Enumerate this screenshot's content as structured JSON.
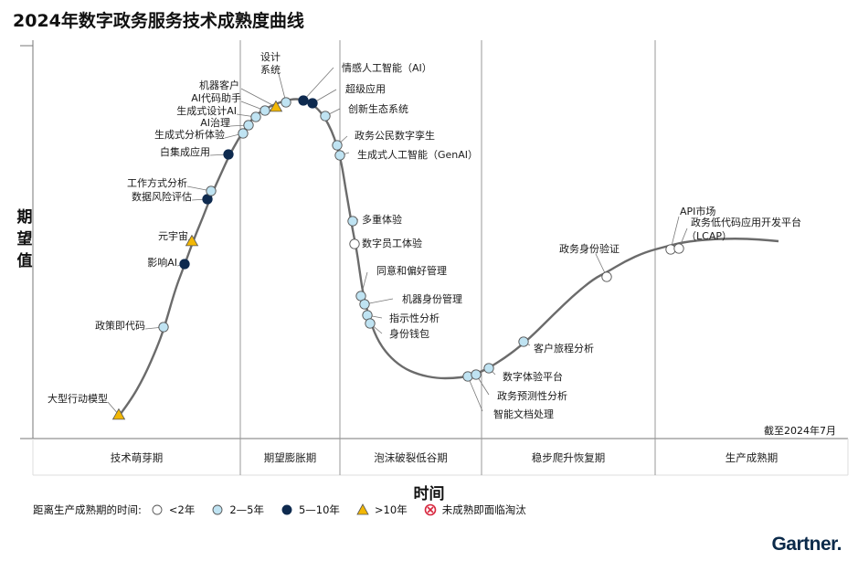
{
  "header": {
    "title": "2024年数字政务服务技术成熟度曲线"
  },
  "axes": {
    "ylabel": "期望值",
    "xlabel": "时间"
  },
  "as_of": "截至2024年7月",
  "brand": "Gartner.",
  "legend": {
    "prefix": "距离生产成熟期的时间:",
    "items": [
      {
        "key": "lt2",
        "label": "<2年",
        "color": "#ffffff"
      },
      {
        "key": "2to5",
        "label": "2—5年",
        "color": "#bfe3f2"
      },
      {
        "key": "5to10",
        "label": "5—10年",
        "color": "#0e2a4f"
      },
      {
        "key": "gt10",
        "label": ">10年",
        "color": "#f2b705"
      },
      {
        "key": "obsolete",
        "label": "未成熟即面临淘汰",
        "color": "#d7263d"
      }
    ]
  },
  "chart_data": {
    "type": "hype-cycle",
    "phases": [
      "技术萌芽期",
      "期望膨胀期",
      "泡沫破裂低谷期",
      "稳步爬升恢复期",
      "生产成熟期"
    ],
    "points": [
      {
        "label": "大型行动模型",
        "category": "gt10",
        "phase": 0
      },
      {
        "label": "政策即代码",
        "category": "2to5",
        "phase": 0
      },
      {
        "label": "影响AI",
        "category": "5to10",
        "phase": 0
      },
      {
        "label": "元宇宙",
        "category": "gt10",
        "phase": 0
      },
      {
        "label": "数据风险评估",
        "category": "5to10",
        "phase": 0
      },
      {
        "label": "工作方式分析",
        "category": "2to5",
        "phase": 0
      },
      {
        "label": "白集成应用",
        "category": "5to10",
        "phase": 0
      },
      {
        "label": "生成式分析体验",
        "category": "2to5",
        "phase": 1
      },
      {
        "label": "AI治理",
        "category": "2to5",
        "phase": 1
      },
      {
        "label": "生成式设计AI",
        "category": "2to5",
        "phase": 1
      },
      {
        "label": "AI代码助手",
        "category": "2to5",
        "phase": 1
      },
      {
        "label": "机器客户",
        "category": "gt10",
        "phase": 1
      },
      {
        "label": "设计系统",
        "category": "2to5",
        "phase": 1
      },
      {
        "label": "情感人工智能（AI）",
        "category": "5to10",
        "phase": 1
      },
      {
        "label": "超级应用",
        "category": "5to10",
        "phase": 1
      },
      {
        "label": "创新生态系统",
        "category": "2to5",
        "phase": 2
      },
      {
        "label": "政务公民数字孪生",
        "category": "2to5",
        "phase": 2
      },
      {
        "label": "生成式人工智能（GenAI）",
        "category": "2to5",
        "phase": 2
      },
      {
        "label": "多重体验",
        "category": "2to5",
        "phase": 2
      },
      {
        "label": "数字员工体验",
        "category": "lt2",
        "phase": 2
      },
      {
        "label": "同意和偏好管理",
        "category": "2to5",
        "phase": 2
      },
      {
        "label": "机器身份管理",
        "category": "2to5",
        "phase": 2
      },
      {
        "label": "指示性分析",
        "category": "2to5",
        "phase": 2
      },
      {
        "label": "身份钱包",
        "category": "2to5",
        "phase": 2
      },
      {
        "label": "智能文档处理",
        "category": "2to5",
        "phase": 2
      },
      {
        "label": "政务预测性分析",
        "category": "2to5",
        "phase": 2
      },
      {
        "label": "数字体验平台",
        "category": "2to5",
        "phase": 3
      },
      {
        "label": "客户旅程分析",
        "category": "2to5",
        "phase": 3
      },
      {
        "label": "政务身份验证",
        "category": "lt2",
        "phase": 3
      },
      {
        "label": "API市场",
        "category": "lt2",
        "phase": 4
      },
      {
        "label": "政务低代码应用开发平台（LCAP）",
        "category": "lt2",
        "phase": 4
      }
    ]
  }
}
